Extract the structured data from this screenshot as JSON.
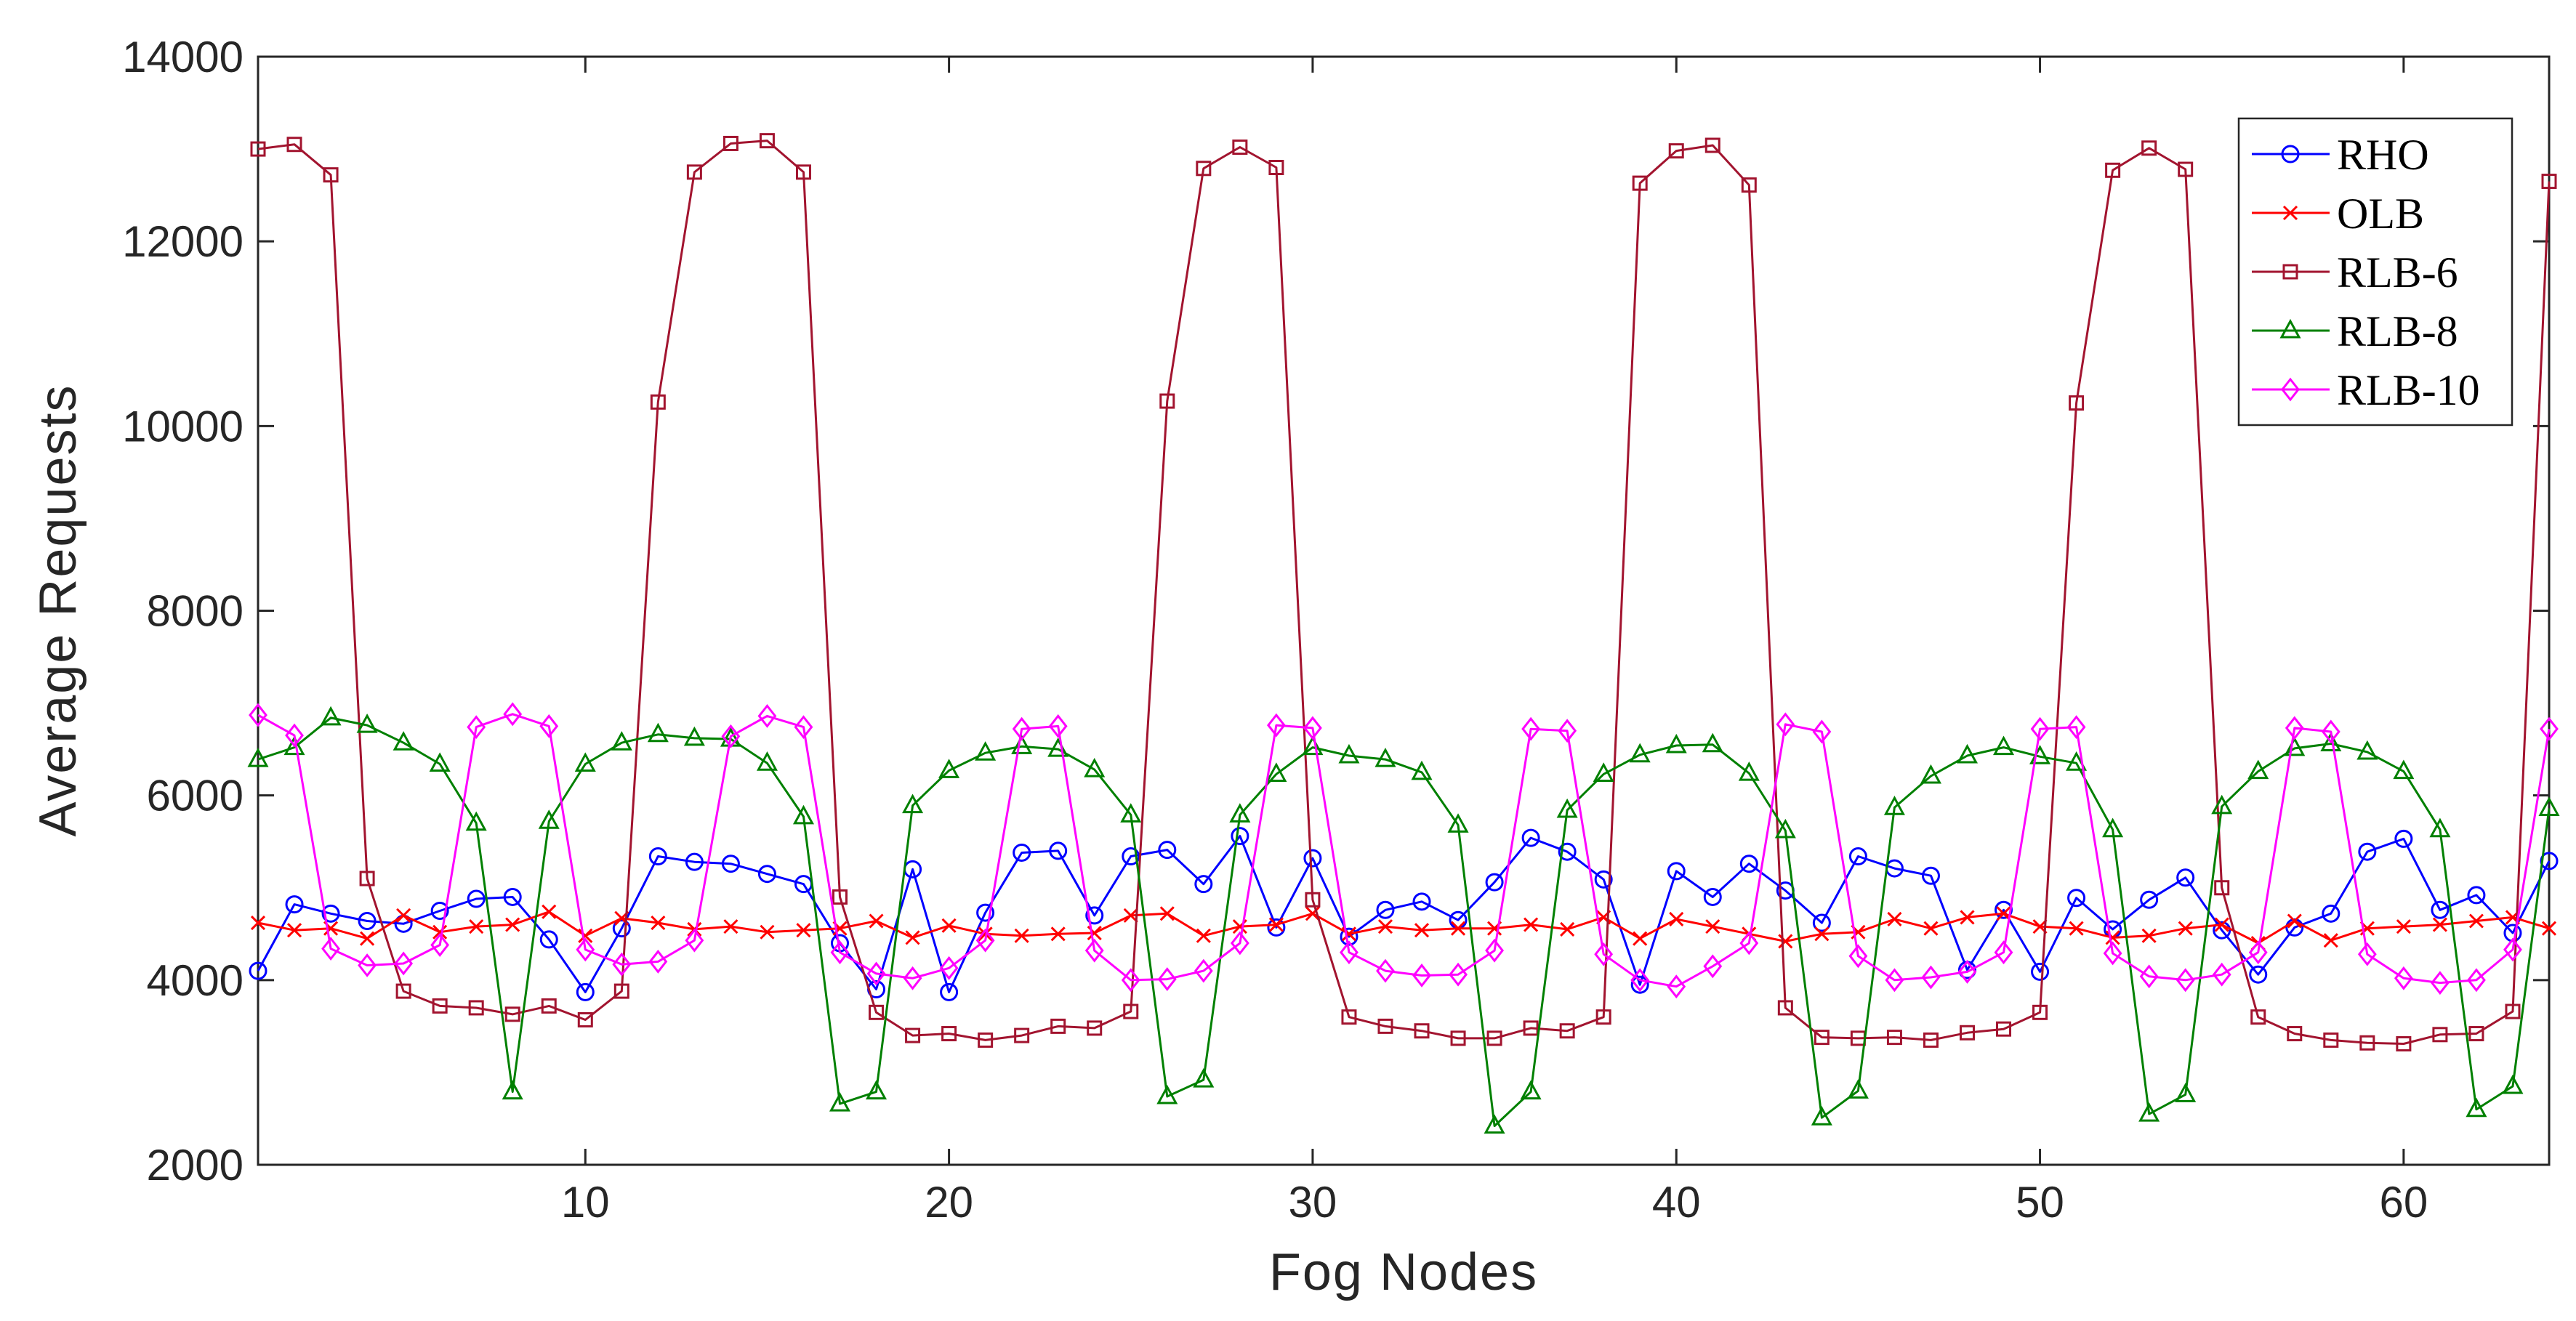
{
  "chart_data": {
    "type": "line",
    "xlabel": "Fog Nodes",
    "ylabel": "Average Requests",
    "xlim": [
      1,
      64
    ],
    "ylim": [
      2000,
      14000
    ],
    "xticks": [
      10,
      20,
      30,
      40,
      50,
      60
    ],
    "yticks": [
      2000,
      4000,
      6000,
      8000,
      10000,
      12000,
      14000
    ],
    "grid": false,
    "legend_position": "top-right",
    "x": [
      1,
      2,
      3,
      4,
      5,
      6,
      7,
      8,
      9,
      10,
      11,
      12,
      13,
      14,
      15,
      16,
      17,
      18,
      19,
      20,
      21,
      22,
      23,
      24,
      25,
      26,
      27,
      28,
      29,
      30,
      31,
      32,
      33,
      34,
      35,
      36,
      37,
      38,
      39,
      40,
      41,
      42,
      43,
      44,
      45,
      46,
      47,
      48,
      49,
      50,
      51,
      52,
      53,
      54,
      55,
      56,
      57,
      58,
      59,
      60,
      61,
      62,
      63,
      64
    ],
    "series": [
      {
        "name": "RHO",
        "color": "#0000ff",
        "marker": "circle",
        "values": [
          4100,
          4820,
          4720,
          4640,
          4610,
          4750,
          4880,
          4900,
          4440,
          3870,
          4560,
          5340,
          5280,
          5260,
          5150,
          5040,
          4400,
          3900,
          5200,
          3870,
          4730,
          5380,
          5400,
          4700,
          5340,
          5410,
          5040,
          5560,
          4570,
          5320,
          4470,
          4760,
          4850,
          4650,
          5060,
          5540,
          5390,
          5090,
          3950,
          5180,
          4900,
          5260,
          4970,
          4620,
          5340,
          5210,
          5130,
          4110,
          4760,
          4090,
          4890,
          4550,
          4870,
          5110,
          4540,
          4060,
          4570,
          4720,
          5390,
          5530,
          4760,
          4920,
          4510,
          5290
        ]
      },
      {
        "name": "OLB",
        "color": "#ff0000",
        "marker": "x",
        "values": [
          4620,
          4540,
          4560,
          4450,
          4700,
          4520,
          4580,
          4600,
          4740,
          4480,
          4670,
          4620,
          4550,
          4580,
          4520,
          4540,
          4560,
          4640,
          4460,
          4590,
          4500,
          4480,
          4500,
          4510,
          4700,
          4720,
          4480,
          4580,
          4600,
          4720,
          4500,
          4580,
          4540,
          4560,
          4560,
          4600,
          4550,
          4680,
          4450,
          4660,
          4580,
          4500,
          4420,
          4500,
          4520,
          4660,
          4560,
          4680,
          4720,
          4580,
          4560,
          4460,
          4480,
          4560,
          4600,
          4400,
          4640,
          4430,
          4560,
          4580,
          4600,
          4640,
          4680,
          4560
        ]
      },
      {
        "name": "RLB-6",
        "color": "#a2142f",
        "marker": "square",
        "values": [
          13000,
          13050,
          12720,
          5100,
          3880,
          3720,
          3700,
          3630,
          3720,
          3570,
          3880,
          10260,
          12750,
          13060,
          13090,
          12750,
          4900,
          3650,
          3400,
          3420,
          3350,
          3400,
          3500,
          3480,
          3660,
          10270,
          12790,
          13020,
          12800,
          4870,
          3600,
          3500,
          3450,
          3370,
          3370,
          3480,
          3450,
          3600,
          12630,
          12980,
          13040,
          12610,
          3700,
          3380,
          3370,
          3380,
          3350,
          3430,
          3470,
          3650,
          10250,
          12770,
          13010,
          12780,
          5000,
          3600,
          3420,
          3350,
          3320,
          3310,
          3410,
          3420,
          3660,
          12650
        ]
      },
      {
        "name": "RLB-8",
        "color": "#008000",
        "marker": "triangle",
        "values": [
          6390,
          6520,
          6840,
          6760,
          6570,
          6340,
          5700,
          2790,
          5720,
          6340,
          6570,
          6660,
          6620,
          6610,
          6350,
          5770,
          2660,
          2790,
          5890,
          6270,
          6460,
          6530,
          6500,
          6280,
          5790,
          2740,
          2920,
          5790,
          6230,
          6520,
          6430,
          6390,
          6250,
          5680,
          2420,
          2790,
          5840,
          6230,
          6440,
          6540,
          6550,
          6240,
          5620,
          2510,
          2800,
          5870,
          6210,
          6430,
          6520,
          6420,
          6350,
          5630,
          2550,
          2760,
          5880,
          6260,
          6510,
          6560,
          6470,
          6260,
          5630,
          2600,
          2850,
          5860
        ]
      },
      {
        "name": "RLB-10",
        "color": "#ff00ff",
        "marker": "diamond",
        "values": [
          6870,
          6650,
          4340,
          4160,
          4180,
          4380,
          6740,
          6880,
          6750,
          4330,
          4170,
          4200,
          4430,
          6640,
          6860,
          6740,
          4300,
          4070,
          4020,
          4130,
          4430,
          6720,
          6750,
          4320,
          4000,
          4010,
          4100,
          4400,
          6760,
          6730,
          4300,
          4100,
          4050,
          4060,
          4320,
          6720,
          6700,
          4280,
          4000,
          3930,
          4150,
          4400,
          6770,
          6690,
          4260,
          4000,
          4030,
          4090,
          4300,
          6720,
          6740,
          4290,
          4040,
          4000,
          4060,
          4300,
          6730,
          6690,
          4280,
          4020,
          3970,
          4000,
          4330,
          6720
        ]
      }
    ]
  }
}
